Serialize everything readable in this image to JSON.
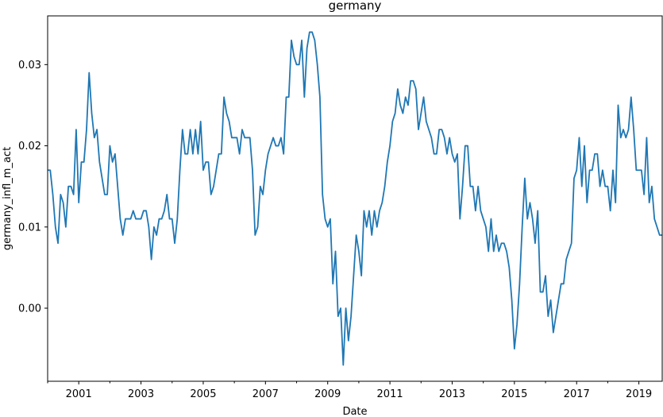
{
  "chart_data": {
    "type": "line",
    "title": "germany",
    "xlabel": "Date",
    "ylabel": "germany_infl_m_act",
    "xlim": [
      "2000-01",
      "2019-10"
    ],
    "ylim": [
      -0.009,
      0.036
    ],
    "grid": false,
    "legend": "none",
    "x_tick_labels": [
      "2001",
      "2003",
      "2005",
      "2007",
      "2009",
      "2011",
      "2013",
      "2015",
      "2017",
      "2019"
    ],
    "y_tick_values": [
      0.0,
      0.01,
      0.02,
      0.03
    ],
    "y_tick_labels": [
      "0.00",
      "0.01",
      "0.02",
      "0.03"
    ],
    "series": [
      {
        "color": "#1f77b4",
        "start": "2000-01",
        "frequency": "monthly",
        "values": [
          0.017,
          0.017,
          0.014,
          0.01,
          0.008,
          0.014,
          0.013,
          0.01,
          0.015,
          0.015,
          0.014,
          0.022,
          0.013,
          0.018,
          0.018,
          0.022,
          0.029,
          0.024,
          0.021,
          0.022,
          0.018,
          0.016,
          0.014,
          0.014,
          0.02,
          0.018,
          0.019,
          0.015,
          0.011,
          0.009,
          0.011,
          0.011,
          0.011,
          0.012,
          0.011,
          0.011,
          0.011,
          0.012,
          0.012,
          0.01,
          0.006,
          0.01,
          0.009,
          0.011,
          0.011,
          0.012,
          0.014,
          0.011,
          0.011,
          0.008,
          0.011,
          0.017,
          0.022,
          0.019,
          0.019,
          0.022,
          0.019,
          0.022,
          0.019,
          0.023,
          0.017,
          0.018,
          0.018,
          0.014,
          0.015,
          0.017,
          0.019,
          0.019,
          0.026,
          0.024,
          0.023,
          0.021,
          0.021,
          0.021,
          0.019,
          0.022,
          0.021,
          0.021,
          0.021,
          0.017,
          0.009,
          0.01,
          0.015,
          0.014,
          0.017,
          0.019,
          0.02,
          0.021,
          0.02,
          0.02,
          0.021,
          0.019,
          0.026,
          0.026,
          0.033,
          0.031,
          0.03,
          0.03,
          0.033,
          0.026,
          0.032,
          0.034,
          0.034,
          0.033,
          0.03,
          0.026,
          0.014,
          0.011,
          0.01,
          0.011,
          0.003,
          0.007,
          -0.001,
          0.0,
          -0.007,
          0.0,
          -0.004,
          -0.001,
          0.004,
          0.009,
          0.007,
          0.004,
          0.012,
          0.01,
          0.012,
          0.009,
          0.012,
          0.01,
          0.012,
          0.013,
          0.015,
          0.018,
          0.02,
          0.023,
          0.024,
          0.027,
          0.025,
          0.024,
          0.026,
          0.025,
          0.028,
          0.028,
          0.027,
          0.022,
          0.024,
          0.026,
          0.023,
          0.022,
          0.021,
          0.019,
          0.019,
          0.022,
          0.022,
          0.021,
          0.019,
          0.021,
          0.019,
          0.018,
          0.019,
          0.011,
          0.015,
          0.02,
          0.02,
          0.015,
          0.015,
          0.012,
          0.015,
          0.012,
          0.011,
          0.01,
          0.007,
          0.011,
          0.007,
          0.009,
          0.007,
          0.008,
          0.008,
          0.007,
          0.005,
          0.001,
          -0.005,
          -0.002,
          0.003,
          0.01,
          0.016,
          0.011,
          0.013,
          0.011,
          0.008,
          0.012,
          0.002,
          0.002,
          0.004,
          -0.001,
          0.001,
          -0.003,
          -0.001,
          0.001,
          0.003,
          0.003,
          0.006,
          0.007,
          0.008,
          0.016,
          0.017,
          0.021,
          0.015,
          0.02,
          0.013,
          0.017,
          0.017,
          0.019,
          0.019,
          0.015,
          0.017,
          0.015,
          0.015,
          0.012,
          0.017,
          0.013,
          0.025,
          0.021,
          0.022,
          0.021,
          0.022,
          0.026,
          0.022,
          0.017,
          0.017,
          0.017,
          0.014,
          0.021,
          0.013,
          0.015,
          0.011,
          0.01,
          0.009,
          0.009
        ]
      }
    ]
  }
}
